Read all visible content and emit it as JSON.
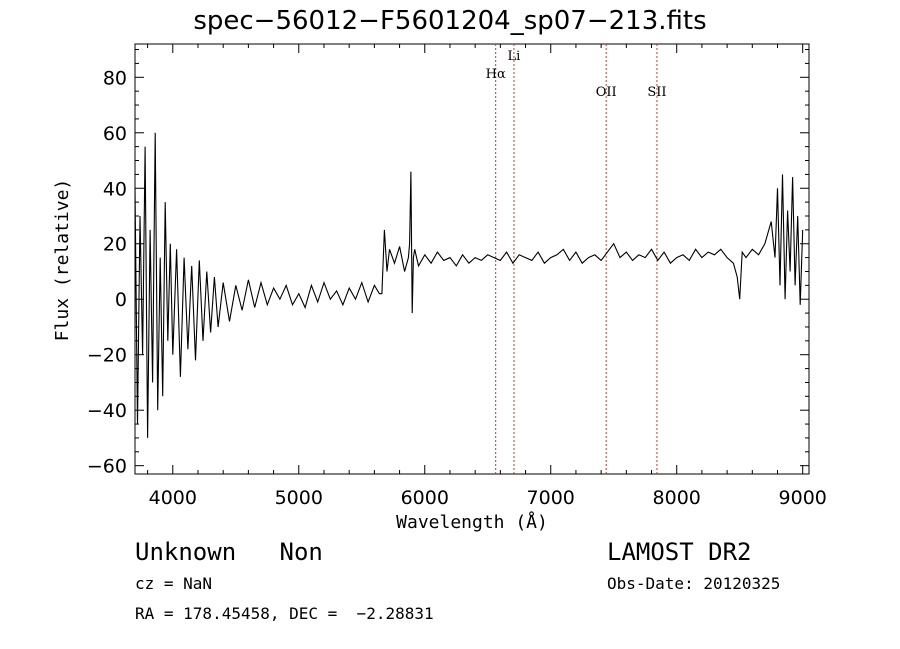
{
  "chart_data": {
    "type": "line",
    "title": "spec−56012−F5601204_sp07−213.fits",
    "xlabel": "Wavelength (Å)",
    "ylabel": "Flux (relative)",
    "xlim": [
      3700,
      9050
    ],
    "ylim": [
      -63,
      92
    ],
    "xticks": [
      4000,
      5000,
      6000,
      7000,
      8000,
      9000
    ],
    "yticks": [
      -60,
      -40,
      -20,
      0,
      20,
      40,
      60,
      80
    ],
    "ytick_labels": [
      "−60",
      "−40",
      "−20",
      "0",
      "20",
      "40",
      "60",
      "80"
    ],
    "grid": false,
    "series": [
      {
        "color": "#000000",
        "x": [
          3700,
          3720,
          3740,
          3760,
          3780,
          3800,
          3820,
          3840,
          3860,
          3880,
          3900,
          3920,
          3940,
          3960,
          3980,
          4000,
          4030,
          4060,
          4090,
          4120,
          4150,
          4180,
          4210,
          4240,
          4270,
          4300,
          4330,
          4360,
          4400,
          4450,
          4500,
          4550,
          4600,
          4650,
          4700,
          4750,
          4800,
          4850,
          4900,
          4950,
          5000,
          5050,
          5100,
          5150,
          5200,
          5250,
          5300,
          5350,
          5400,
          5450,
          5500,
          5550,
          5600,
          5640,
          5660,
          5680,
          5700,
          5720,
          5760,
          5800,
          5840,
          5870,
          5880,
          5890,
          5900,
          5910,
          5920,
          5950,
          6000,
          6050,
          6100,
          6150,
          6200,
          6250,
          6300,
          6350,
          6400,
          6450,
          6500,
          6550,
          6600,
          6650,
          6700,
          6750,
          6800,
          6850,
          6900,
          6950,
          7000,
          7050,
          7100,
          7150,
          7200,
          7250,
          7300,
          7350,
          7400,
          7450,
          7500,
          7550,
          7600,
          7650,
          7700,
          7750,
          7800,
          7850,
          7900,
          7950,
          8000,
          8050,
          8100,
          8150,
          8200,
          8250,
          8300,
          8350,
          8400,
          8450,
          8480,
          8500,
          8520,
          8550,
          8600,
          8650,
          8700,
          8750,
          8780,
          8800,
          8820,
          8840,
          8860,
          8880,
          8900,
          8920,
          8940,
          8960,
          8980,
          9000
        ],
        "y": [
          40,
          -45,
          30,
          -20,
          55,
          -50,
          25,
          -30,
          60,
          -40,
          15,
          -35,
          35,
          -15,
          20,
          -20,
          18,
          -28,
          15,
          -18,
          12,
          -22,
          14,
          -15,
          10,
          -12,
          8,
          -10,
          6,
          -8,
          5,
          -4,
          7,
          -3,
          6,
          -2,
          4,
          0,
          5,
          -2,
          2,
          -3,
          5,
          -1,
          6,
          0,
          3,
          -2,
          4,
          0,
          6,
          -1,
          5,
          2,
          2,
          25,
          10,
          18,
          13,
          19,
          10,
          15,
          20,
          46,
          -5,
          15,
          18,
          12,
          16,
          13,
          17,
          14,
          15,
          12,
          16,
          13,
          15,
          14,
          16,
          15,
          14,
          17,
          13,
          16,
          15,
          14,
          17,
          13,
          15,
          16,
          18,
          14,
          17,
          13,
          15,
          16,
          14,
          17,
          20,
          15,
          17,
          14,
          16,
          15,
          18,
          14,
          17,
          13,
          15,
          16,
          14,
          18,
          15,
          17,
          16,
          18,
          15,
          13,
          8,
          0,
          17,
          15,
          18,
          16,
          20,
          28,
          15,
          40,
          5,
          45,
          0,
          32,
          10,
          44,
          5,
          30,
          -2,
          25
        ],
        "name": ""
      }
    ],
    "annotations": [
      {
        "label": "Hα",
        "x": 6563
      },
      {
        "label": "Li",
        "x": 6708
      },
      {
        "label": "OII",
        "x": 7440
      },
      {
        "label": "SII",
        "x": 7843
      }
    ],
    "annotation_color": "#c0392b"
  },
  "info": {
    "class_line": "Unknown   Non",
    "survey": "LAMOST DR2",
    "cz": "cz = NaN",
    "obs_date": "Obs-Date: 20120325",
    "radec": "RA = 178.45458, DEC =  −2.28831"
  }
}
